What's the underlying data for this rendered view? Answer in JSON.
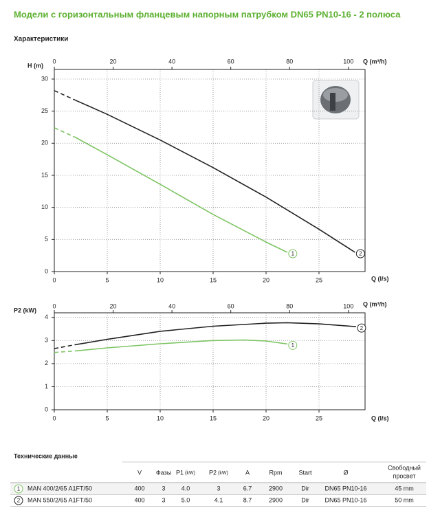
{
  "title": "Модели с горизонтальным фланцевым напорным патрубком DN65 PN10-16 - 2 полюса",
  "section": "Характеристики",
  "chart_data": [
    {
      "type": "line",
      "ylabel": "H (m)",
      "xlabel": "Q (l/s)",
      "x2label": "Q (m³/h)",
      "xlim": [
        0,
        29.35
      ],
      "xticks": [
        0,
        5,
        10,
        15,
        20,
        25
      ],
      "x2lim": [
        0,
        105.66
      ],
      "x2ticks": [
        0,
        20,
        40,
        60,
        80,
        100
      ],
      "ylim": [
        0,
        31.5
      ],
      "yticks": [
        0,
        5,
        10,
        15,
        20,
        25,
        30
      ],
      "grid": true,
      "dash_to": 2,
      "series": [
        {
          "name": "1",
          "color": "#7dc462",
          "x": [
            0,
            2,
            5,
            10,
            15,
            20,
            22
          ],
          "values": [
            22.4,
            20.9,
            18.2,
            13.6,
            8.9,
            4.6,
            3.0
          ]
        },
        {
          "name": "2",
          "color": "#222222",
          "x": [
            0,
            2,
            5,
            10,
            15,
            20,
            25,
            28.4
          ],
          "values": [
            28.2,
            26.7,
            24.5,
            20.5,
            16.2,
            11.6,
            6.6,
            3.0
          ]
        }
      ]
    },
    {
      "type": "line",
      "ylabel": "P2 (kW)",
      "xlabel": "Q (l/s)",
      "x2label": "Q (m³/h)",
      "xlim": [
        0,
        29.35
      ],
      "xticks": [
        0,
        5,
        10,
        15,
        20,
        25
      ],
      "x2lim": [
        0,
        105.66
      ],
      "x2ticks": [
        0,
        20,
        40,
        60,
        80,
        100
      ],
      "ylim": [
        0,
        4.2
      ],
      "yticks": [
        0,
        1,
        2,
        3,
        4
      ],
      "grid": true,
      "dash_to": 2,
      "series": [
        {
          "name": "1",
          "color": "#7dc462",
          "x": [
            0,
            2,
            5,
            10,
            15,
            18,
            20,
            22
          ],
          "values": [
            2.48,
            2.55,
            2.68,
            2.86,
            3.0,
            3.02,
            2.98,
            2.85
          ]
        },
        {
          "name": "2",
          "color": "#222222",
          "x": [
            0,
            2,
            5,
            10,
            15,
            20,
            22,
            25,
            28.5
          ],
          "values": [
            2.65,
            2.82,
            3.05,
            3.4,
            3.62,
            3.75,
            3.77,
            3.72,
            3.6
          ]
        }
      ]
    }
  ],
  "table": {
    "title": "Технические данные",
    "header": [
      {
        "text": "V"
      },
      {
        "text": "Фазы"
      },
      {
        "text": "P1",
        "unit": "(kW)"
      },
      {
        "text": "P2",
        "unit": "(kW)"
      },
      {
        "text": "A"
      },
      {
        "text": "Rpm"
      },
      {
        "text": "Start"
      },
      {
        "text": "Ø"
      },
      {
        "lines": [
          "Свободный",
          "просвет"
        ]
      }
    ],
    "rows": [
      {
        "marker": "1",
        "cells": [
          "MAN 400/2/65 A1FT/50",
          "400",
          "3",
          "4.0",
          "3",
          "6.7",
          "2900",
          "Dir",
          "DN65 PN10-16",
          "45 mm"
        ]
      },
      {
        "marker": "2",
        "cells": [
          "MAN 550/2/65 A1FT/50",
          "400",
          "3",
          "5.0",
          "4.1",
          "8.7",
          "2900",
          "Dir",
          "DN65 PN10-16",
          "50 mm"
        ]
      }
    ]
  }
}
